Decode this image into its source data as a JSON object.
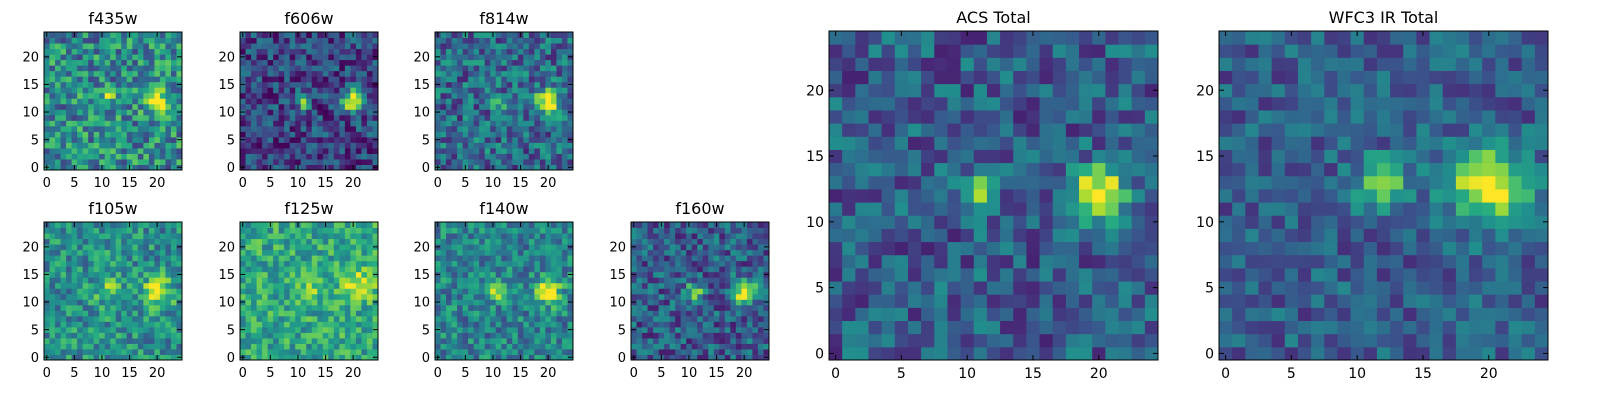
{
  "figure": {
    "colormap": "viridis",
    "image_size": [
      25,
      25
    ],
    "panels_text_note": ""
  },
  "chart_data": [
    {
      "type": "heatmap",
      "title": "f435w",
      "xlabel": "",
      "ylabel": "",
      "xlim": [
        0,
        24
      ],
      "ylim": [
        0,
        24
      ],
      "x_ticks": [
        "0",
        "5",
        "10",
        "15",
        "20"
      ],
      "y_ticks": [
        "0",
        "5",
        "10",
        "15",
        "20"
      ],
      "sources": [
        {
          "x": 11,
          "y": 13,
          "sigma": 0.8,
          "amp": 0.35
        },
        {
          "x": 20,
          "y": 12,
          "sigma": 1.3,
          "amp": 0.75
        }
      ],
      "background": 0.48,
      "noise": 0.28,
      "seed": 11
    },
    {
      "type": "heatmap",
      "title": "f606w",
      "xlabel": "",
      "ylabel": "",
      "xlim": [
        0,
        24
      ],
      "ylim": [
        0,
        24
      ],
      "x_ticks": [
        "0",
        "5",
        "10",
        "15",
        "20"
      ],
      "y_ticks": [
        "0",
        "5",
        "10",
        "15",
        "20"
      ],
      "sources": [
        {
          "x": 11,
          "y": 12,
          "sigma": 0.9,
          "amp": 0.7
        },
        {
          "x": 20,
          "y": 12,
          "sigma": 1.4,
          "amp": 0.85
        }
      ],
      "background": 0.22,
      "noise": 0.22,
      "seed": 23
    },
    {
      "type": "heatmap",
      "title": "f814w",
      "xlabel": "",
      "ylabel": "",
      "xlim": [
        0,
        24
      ],
      "ylim": [
        0,
        24
      ],
      "x_ticks": [
        "0",
        "5",
        "10",
        "15",
        "20"
      ],
      "y_ticks": [
        "0",
        "5",
        "10",
        "15",
        "20"
      ],
      "sources": [
        {
          "x": 11,
          "y": 12,
          "sigma": 0.9,
          "amp": 0.55
        },
        {
          "x": 20,
          "y": 12,
          "sigma": 1.5,
          "amp": 0.75
        }
      ],
      "background": 0.35,
      "noise": 0.25,
      "seed": 37
    },
    {
      "type": "heatmap",
      "title": "f105w",
      "xlabel": "",
      "ylabel": "",
      "xlim": [
        0,
        24
      ],
      "ylim": [
        0,
        24
      ],
      "x_ticks": [
        "0",
        "5",
        "10",
        "15",
        "20"
      ],
      "y_ticks": [
        "0",
        "5",
        "10",
        "15",
        "20"
      ],
      "sources": [
        {
          "x": 11,
          "y": 12,
          "sigma": 1.5,
          "amp": 0.3
        },
        {
          "x": 20,
          "y": 12,
          "sigma": 1.8,
          "amp": 0.5
        }
      ],
      "background": 0.5,
      "noise": 0.22,
      "seed": 41
    },
    {
      "type": "heatmap",
      "title": "f125w",
      "xlabel": "",
      "ylabel": "",
      "xlim": [
        0,
        24
      ],
      "ylim": [
        0,
        24
      ],
      "x_ticks": [
        "0",
        "5",
        "10",
        "15",
        "20"
      ],
      "y_ticks": [
        "0",
        "5",
        "10",
        "15",
        "20"
      ],
      "sources": [
        {
          "x": 12,
          "y": 12,
          "sigma": 1.5,
          "amp": 0.2
        },
        {
          "x": 21,
          "y": 13,
          "sigma": 1.8,
          "amp": 0.4
        }
      ],
      "background": 0.6,
      "noise": 0.2,
      "seed": 53
    },
    {
      "type": "heatmap",
      "title": "f140w",
      "xlabel": "",
      "ylabel": "",
      "xlim": [
        0,
        24
      ],
      "ylim": [
        0,
        24
      ],
      "x_ticks": [
        "0",
        "5",
        "10",
        "15",
        "20"
      ],
      "y_ticks": [
        "0",
        "5",
        "10",
        "15",
        "20"
      ],
      "sources": [
        {
          "x": 11,
          "y": 12,
          "sigma": 1.3,
          "amp": 0.45
        },
        {
          "x": 20,
          "y": 12,
          "sigma": 1.6,
          "amp": 0.6
        }
      ],
      "background": 0.45,
      "noise": 0.22,
      "seed": 67
    },
    {
      "type": "heatmap",
      "title": "f160w",
      "xlabel": "",
      "ylabel": "",
      "xlim": [
        0,
        24
      ],
      "ylim": [
        0,
        24
      ],
      "x_ticks": [
        "0",
        "5",
        "10",
        "15",
        "20"
      ],
      "y_ticks": [
        "0",
        "5",
        "10",
        "15",
        "20"
      ],
      "sources": [
        {
          "x": 11,
          "y": 12,
          "sigma": 1.0,
          "amp": 0.6
        },
        {
          "x": 20,
          "y": 12,
          "sigma": 1.5,
          "amp": 0.75
        }
      ],
      "background": 0.3,
      "noise": 0.22,
      "seed": 79
    },
    {
      "type": "heatmap",
      "title": "ACS Total",
      "xlabel": "",
      "ylabel": "",
      "xlim": [
        0,
        24
      ],
      "ylim": [
        0,
        24
      ],
      "x_ticks": [
        "0",
        "5",
        "10",
        "15",
        "20"
      ],
      "y_ticks": [
        "0",
        "5",
        "10",
        "15",
        "20"
      ],
      "sources": [
        {
          "x": 11,
          "y": 12,
          "sigma": 0.8,
          "amp": 0.75
        },
        {
          "x": 20,
          "y": 12,
          "sigma": 1.4,
          "amp": 0.85
        }
      ],
      "background": 0.3,
      "noise": 0.2,
      "seed": 97
    },
    {
      "type": "heatmap",
      "title": "WFC3 IR Total",
      "xlabel": "",
      "ylabel": "",
      "xlim": [
        0,
        24
      ],
      "ylim": [
        0,
        24
      ],
      "x_ticks": [
        "0",
        "5",
        "10",
        "15",
        "20"
      ],
      "y_ticks": [
        "0",
        "5",
        "10",
        "15",
        "20"
      ],
      "sources": [
        {
          "x": 12,
          "y": 13,
          "sigma": 1.3,
          "amp": 0.55
        },
        {
          "x": 20,
          "y": 13,
          "sigma": 2.0,
          "amp": 0.75
        }
      ],
      "background": 0.3,
      "noise": 0.17,
      "seed": 113
    }
  ]
}
